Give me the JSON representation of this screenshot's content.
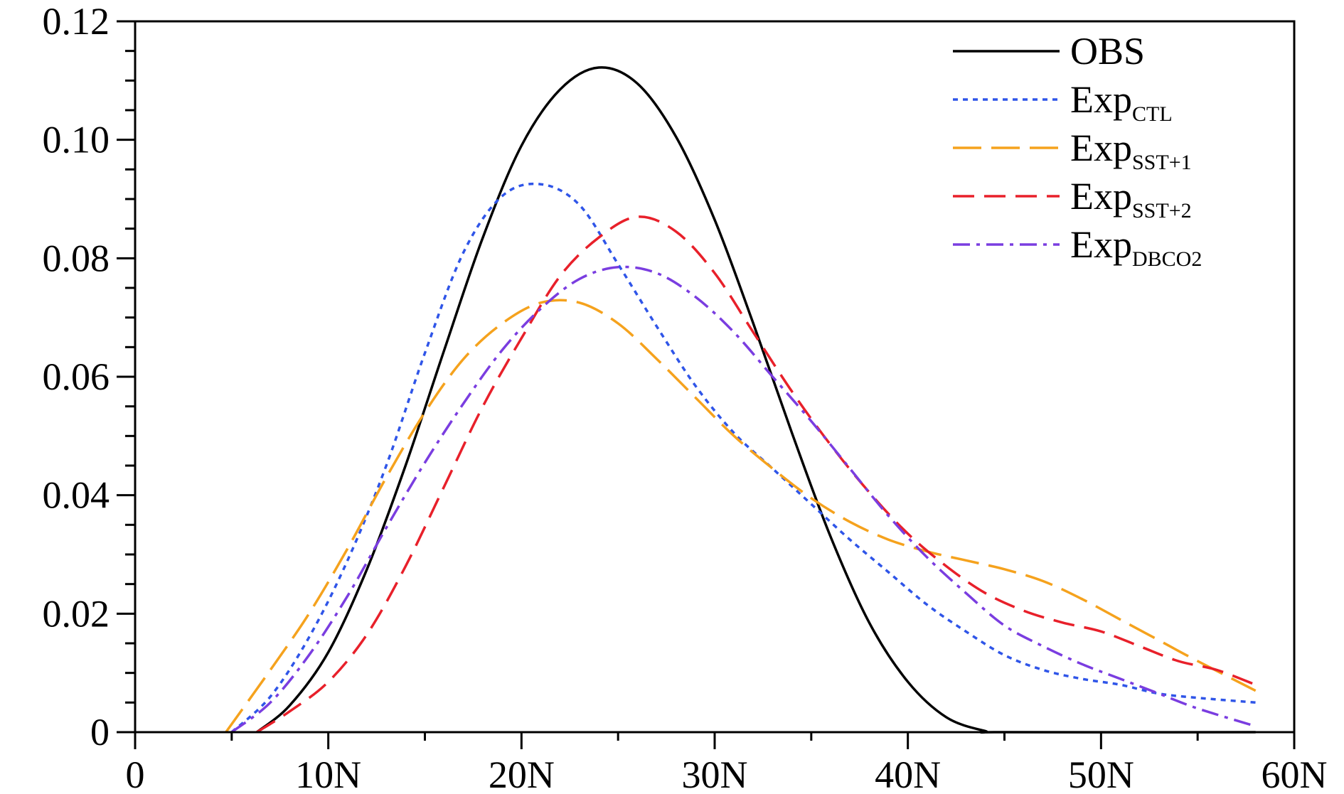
{
  "chart_data": {
    "type": "line",
    "title": "",
    "xlabel": "",
    "ylabel": "",
    "xlim": [
      0,
      60
    ],
    "ylim": [
      0,
      0.12
    ],
    "x_ticks": [
      {
        "value": 0,
        "label": "0"
      },
      {
        "value": 10,
        "label": "10N"
      },
      {
        "value": 20,
        "label": "20N"
      },
      {
        "value": 30,
        "label": "30N"
      },
      {
        "value": 40,
        "label": "40N"
      },
      {
        "value": 50,
        "label": "50N"
      },
      {
        "value": 60,
        "label": "60N"
      }
    ],
    "y_ticks": [
      {
        "value": 0,
        "label": "0"
      },
      {
        "value": 0.02,
        "label": "0.02"
      },
      {
        "value": 0.04,
        "label": "0.04"
      },
      {
        "value": 0.06,
        "label": "0.06"
      },
      {
        "value": 0.08,
        "label": "0.08"
      },
      {
        "value": 0.1,
        "label": "0.10"
      },
      {
        "value": 0.12,
        "label": "0.12"
      }
    ],
    "legend_position": "top-right",
    "grid": false,
    "series": [
      {
        "name": "OBS",
        "label_main": "OBS",
        "label_sub": "",
        "color": "#000000",
        "dash": "solid",
        "points": [
          [
            6.3,
            0
          ],
          [
            8,
            0.0045
          ],
          [
            10,
            0.0135
          ],
          [
            12,
            0.0275
          ],
          [
            14,
            0.045
          ],
          [
            16,
            0.0645
          ],
          [
            18,
            0.0835
          ],
          [
            20,
            0.099
          ],
          [
            22,
            0.1085
          ],
          [
            24,
            0.1122
          ],
          [
            26,
            0.1095
          ],
          [
            28,
            0.1005
          ],
          [
            30,
            0.0865
          ],
          [
            32,
            0.069
          ],
          [
            34,
            0.0505
          ],
          [
            36,
            0.033
          ],
          [
            38,
            0.0185
          ],
          [
            40,
            0.0085
          ],
          [
            42,
            0.0025
          ],
          [
            44,
            0.0002
          ],
          [
            45,
            0
          ],
          [
            58,
            0
          ]
        ]
      },
      {
        "name": "ExpCTL",
        "label_main": "Exp",
        "label_sub": "CTL",
        "color": "#2f55e8",
        "dash": "dotted",
        "points": [
          [
            5,
            0
          ],
          [
            7,
            0.006
          ],
          [
            9,
            0.016
          ],
          [
            11,
            0.029
          ],
          [
            13,
            0.045
          ],
          [
            15,
            0.064
          ],
          [
            17,
            0.081
          ],
          [
            19,
            0.0905
          ],
          [
            21,
            0.0925
          ],
          [
            23,
            0.089
          ],
          [
            25,
            0.079
          ],
          [
            27,
            0.0685
          ],
          [
            29,
            0.0585
          ],
          [
            31,
            0.0505
          ],
          [
            33,
            0.0445
          ],
          [
            35,
            0.0385
          ],
          [
            37,
            0.0325
          ],
          [
            39,
            0.027
          ],
          [
            41,
            0.0215
          ],
          [
            43,
            0.017
          ],
          [
            45,
            0.013
          ],
          [
            47,
            0.0105
          ],
          [
            49,
            0.009
          ],
          [
            51,
            0.008
          ],
          [
            53,
            0.0065
          ],
          [
            55,
            0.0058
          ],
          [
            58,
            0.005
          ]
        ]
      },
      {
        "name": "ExpSST+1",
        "label_main": "Exp",
        "label_sub": "SST+1",
        "color": "#f5a21d",
        "dash": "long-dash",
        "points": [
          [
            4.7,
            0
          ],
          [
            7,
            0.0105
          ],
          [
            9,
            0.02
          ],
          [
            11,
            0.031
          ],
          [
            13,
            0.043
          ],
          [
            15,
            0.054
          ],
          [
            17,
            0.063
          ],
          [
            19,
            0.069
          ],
          [
            21,
            0.0725
          ],
          [
            23,
            0.0725
          ],
          [
            25,
            0.069
          ],
          [
            27,
            0.063
          ],
          [
            29,
            0.0565
          ],
          [
            31,
            0.05
          ],
          [
            33,
            0.0445
          ],
          [
            35,
            0.0395
          ],
          [
            37,
            0.0355
          ],
          [
            39,
            0.0325
          ],
          [
            41,
            0.0305
          ],
          [
            43,
            0.029
          ],
          [
            45,
            0.0275
          ],
          [
            47,
            0.0255
          ],
          [
            49,
            0.0225
          ],
          [
            51,
            0.019
          ],
          [
            53,
            0.0155
          ],
          [
            55,
            0.012
          ],
          [
            58,
            0.007
          ]
        ]
      },
      {
        "name": "ExpSST+2",
        "label_main": "Exp",
        "label_sub": "SST+2",
        "color": "#e8202a",
        "dash": "dash",
        "points": [
          [
            6.3,
            0
          ],
          [
            8,
            0.0035
          ],
          [
            10,
            0.0085
          ],
          [
            12,
            0.0165
          ],
          [
            14,
            0.028
          ],
          [
            16,
            0.0415
          ],
          [
            18,
            0.055
          ],
          [
            20,
            0.0665
          ],
          [
            22,
            0.077
          ],
          [
            24,
            0.0835
          ],
          [
            26,
            0.087
          ],
          [
            28,
            0.0845
          ],
          [
            30,
            0.0775
          ],
          [
            32,
            0.0675
          ],
          [
            34,
            0.0575
          ],
          [
            36,
            0.0485
          ],
          [
            38,
            0.0405
          ],
          [
            40,
            0.0335
          ],
          [
            42,
            0.028
          ],
          [
            44,
            0.0235
          ],
          [
            46,
            0.0205
          ],
          [
            48,
            0.0185
          ],
          [
            50,
            0.017
          ],
          [
            52,
            0.0145
          ],
          [
            54,
            0.012
          ],
          [
            56,
            0.0105
          ],
          [
            58,
            0.008
          ]
        ]
      },
      {
        "name": "ExpDBCO2",
        "label_main": "Exp",
        "label_sub": "DBCO2",
        "color": "#7a3de0",
        "dash": "dash-dot",
        "points": [
          [
            5,
            0
          ],
          [
            7,
            0.005
          ],
          [
            9,
            0.013
          ],
          [
            11,
            0.023
          ],
          [
            13,
            0.0345
          ],
          [
            15,
            0.0455
          ],
          [
            17,
            0.0555
          ],
          [
            19,
            0.0645
          ],
          [
            21,
            0.0715
          ],
          [
            23,
            0.0765
          ],
          [
            25,
            0.0785
          ],
          [
            27,
            0.0775
          ],
          [
            29,
            0.0735
          ],
          [
            31,
            0.0675
          ],
          [
            33,
            0.06
          ],
          [
            35,
            0.0525
          ],
          [
            37,
            0.0445
          ],
          [
            39,
            0.0365
          ],
          [
            41,
            0.0295
          ],
          [
            43,
            0.0235
          ],
          [
            45,
            0.018
          ],
          [
            47,
            0.0145
          ],
          [
            49,
            0.0115
          ],
          [
            51,
            0.009
          ],
          [
            53,
            0.0065
          ],
          [
            55,
            0.004
          ],
          [
            58,
            0.001
          ]
        ]
      }
    ]
  }
}
